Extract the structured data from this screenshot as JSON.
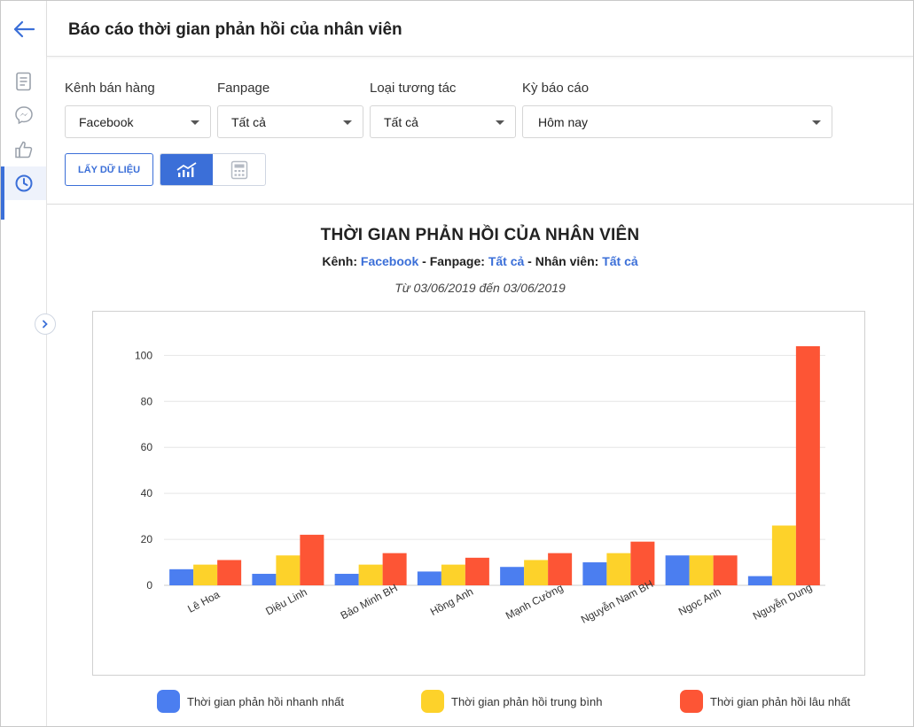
{
  "header": {
    "title": "Báo cáo thời gian phản hồi của nhân viên"
  },
  "sidebar": {
    "items": [
      {
        "icon": "document-icon",
        "active": false
      },
      {
        "icon": "messenger-icon",
        "active": false
      },
      {
        "icon": "thumbs-up-icon",
        "active": false
      },
      {
        "icon": "clock-icon",
        "active": true
      }
    ]
  },
  "filters": {
    "channel": {
      "label": "Kênh bán hàng",
      "value": "Facebook"
    },
    "fanpage": {
      "label": "Fanpage",
      "value": "Tất cả"
    },
    "interaction_type": {
      "label": "Loại tương tác",
      "value": "Tất cả"
    },
    "period": {
      "label": "Kỳ báo cáo",
      "value": "Hôm nay"
    }
  },
  "actions": {
    "fetch_label": "LẤY DỮ LIỆU"
  },
  "chart_header": {
    "title": "THỜI GIAN PHẢN HỒI CỦA NHÂN VIÊN",
    "channel_prefix": "Kênh:",
    "channel_value": "Facebook",
    "fanpage_prefix": "- Fanpage:",
    "fanpage_value": "Tất cả",
    "staff_prefix": "- Nhân viên:",
    "staff_value": "Tất cả",
    "date_range": "Từ 03/06/2019 đến 03/06/2019"
  },
  "colors": {
    "accent": "#3b6fd8",
    "fast": "#4b7ef0",
    "avg": "#fdd22a",
    "slow": "#fd5535"
  },
  "chart_data": {
    "type": "bar",
    "categories": [
      "Lê Hoa",
      "Diệu Linh",
      "Bảo Minh BH",
      "Hồng Anh",
      "Mạnh Cường",
      "Nguyễn Nam BH",
      "Ngọc Anh",
      "Nguyễn Dung"
    ],
    "series": [
      {
        "name": "Thời gian phản hồi nhanh nhất",
        "color": "#4b7ef0",
        "values": [
          7,
          5,
          5,
          6,
          8,
          10,
          13,
          4
        ]
      },
      {
        "name": "Thời gian phản hồi trung bình",
        "color": "#fdd22a",
        "values": [
          9,
          13,
          9,
          9,
          11,
          14,
          13,
          26
        ]
      },
      {
        "name": "Thời gian phản hồi lâu nhất",
        "color": "#fd5535",
        "values": [
          11,
          22,
          14,
          12,
          14,
          19,
          13,
          104
        ]
      }
    ],
    "yticks": [
      0,
      20,
      40,
      60,
      80,
      100
    ],
    "ylim": [
      0,
      104
    ],
    "grid": true,
    "legend": "bottom"
  }
}
